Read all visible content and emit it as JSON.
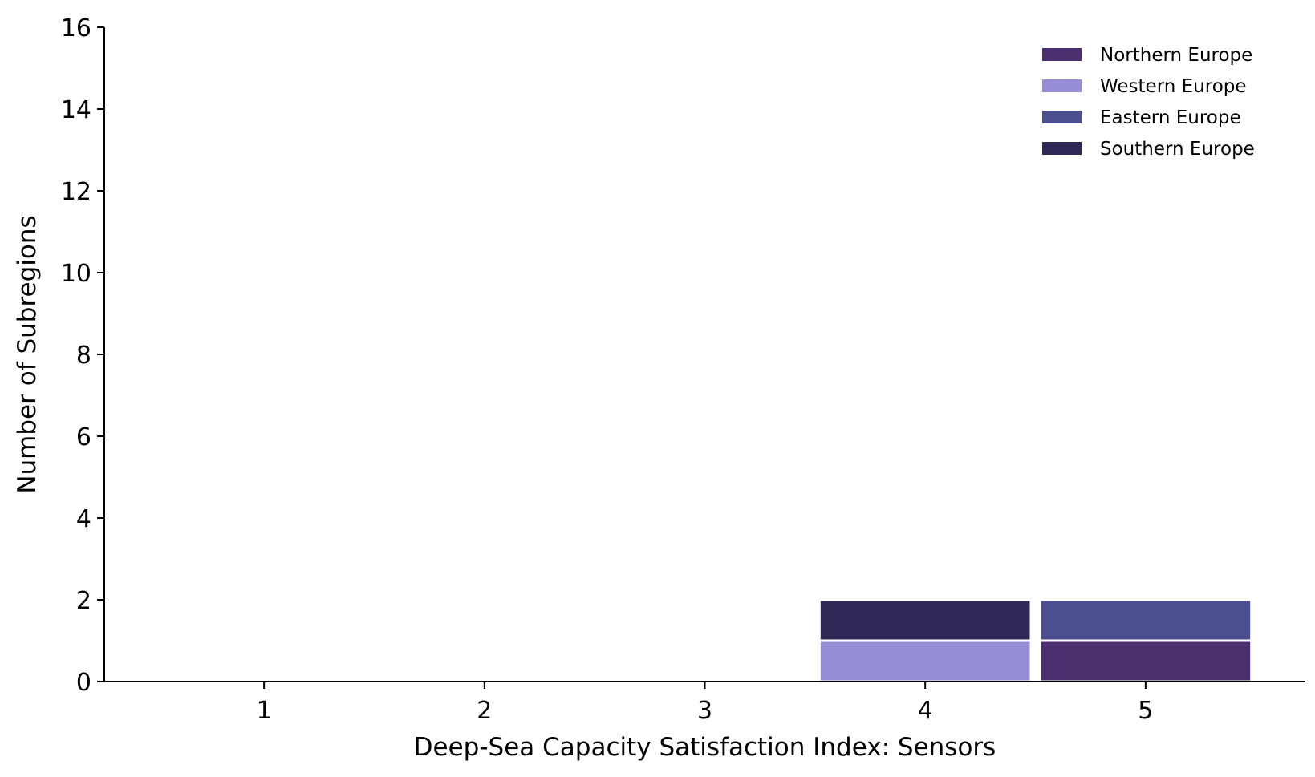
{
  "chart_data": {
    "type": "bar",
    "stacked": true,
    "xlabel": "Deep-Sea Capacity Satisfaction Index: Sensors",
    "ylabel": "Number of Subregions",
    "categories": [
      "1",
      "2",
      "3",
      "4",
      "5"
    ],
    "ylim": [
      0,
      16
    ],
    "yticks": [
      "0",
      "2",
      "4",
      "6",
      "8",
      "10",
      "12",
      "14",
      "16"
    ],
    "stack_order": [
      "Northern Europe",
      "Western Europe",
      "Eastern Europe",
      "Southern Europe"
    ],
    "series": [
      {
        "name": "Northern Europe",
        "color": "#4b2f6f",
        "values": [
          0,
          0,
          0,
          0,
          1
        ]
      },
      {
        "name": "Western Europe",
        "color": "#968dd6",
        "values": [
          0,
          0,
          0,
          1,
          0
        ]
      },
      {
        "name": "Eastern Europe",
        "color": "#4b4f8f",
        "values": [
          0,
          0,
          0,
          0,
          1
        ]
      },
      {
        "name": "Southern Europe",
        "color": "#302957",
        "values": [
          0,
          0,
          0,
          1,
          0
        ]
      }
    ],
    "legend_position": "upper right",
    "grid": false,
    "spines": [
      "left",
      "bottom"
    ]
  }
}
